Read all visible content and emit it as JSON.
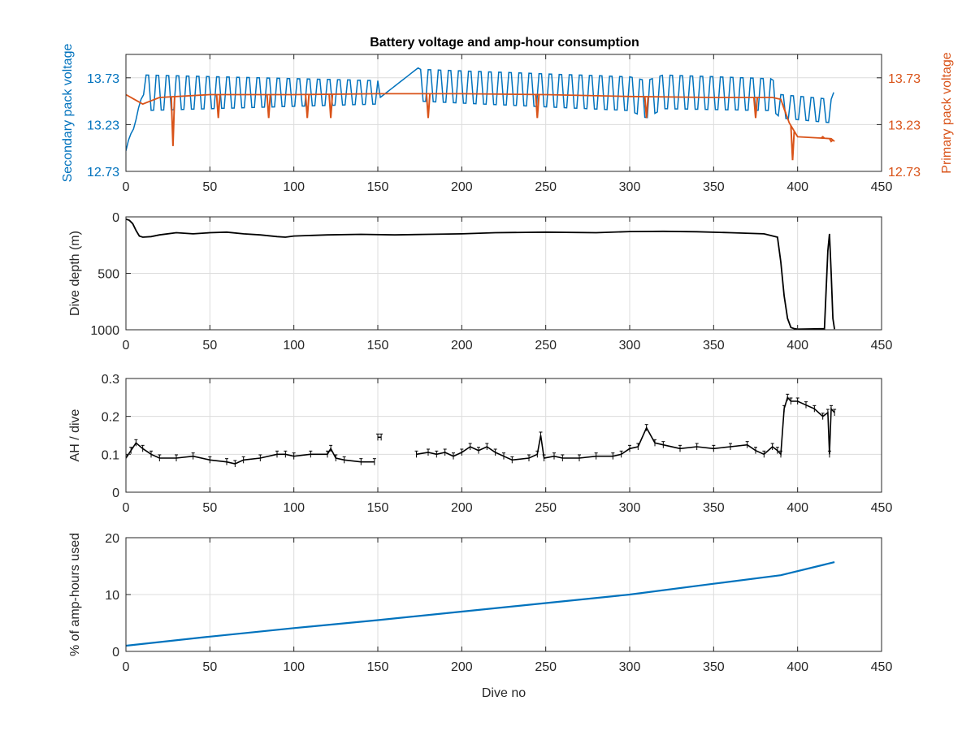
{
  "figure": {
    "title": "Battery voltage and amp-hour consumption",
    "colors": {
      "secondary": "#0072BD",
      "primary": "#D95319",
      "black": "#000000",
      "grid": "#dcdcdc"
    }
  },
  "chart_data": [
    {
      "type": "line",
      "title": "Battery voltage and amp-hour consumption",
      "xlabel": "",
      "ylabel": "Secondary pack voltage",
      "ylabel_right": "Primary pack voltage",
      "xlim": [
        0,
        450
      ],
      "ylim": [
        12.73,
        13.98
      ],
      "ylim_right": [
        12.73,
        13.98
      ],
      "xticks": [
        0,
        50,
        100,
        150,
        200,
        250,
        300,
        350,
        400,
        450
      ],
      "yticks": [
        12.73,
        13.23,
        13.73
      ],
      "ytick_labels": [
        "12.73",
        "13.23",
        "13.73"
      ],
      "yticks_right": [
        12.73,
        13.23,
        13.73
      ],
      "ytick_labels_right": [
        "12.73",
        "13.23",
        "13.73"
      ],
      "grid": true,
      "note_series_style": "secondary oscillates between low and high level",
      "series": [
        {
          "axis": "left",
          "color": "#0072BD",
          "x": [
            0,
            2,
            5,
            8,
            10,
            150,
            175,
            300,
            310,
            320,
            385,
            390,
            420,
            422
          ],
          "y": [
            12.95,
            13.1,
            13.2,
            13.45,
            13.55,
            13.5,
            13.85,
            13.55,
            13.3,
            13.6,
            13.55,
            13.3,
            13.35,
            13.5
          ],
          "osc_low": [
            13.35,
            13.35,
            13.35,
            13.4,
            13.38,
            13.45,
            13.48,
            13.38,
            13.3,
            13.4,
            13.38,
            13.3,
            13.25,
            13.3
          ],
          "osc_high": [
            13.1,
            13.3,
            13.55,
            13.76,
            13.76,
            13.7,
            13.82,
            13.74,
            13.7,
            13.76,
            13.72,
            13.55,
            13.5,
            13.6
          ]
        },
        {
          "axis": "right",
          "color": "#D95319",
          "x": [
            0,
            5,
            10,
            20,
            50,
            100,
            150,
            200,
            250,
            300,
            350,
            385,
            390,
            395,
            400,
            420,
            422
          ],
          "y": [
            13.55,
            13.5,
            13.45,
            13.52,
            13.55,
            13.55,
            13.56,
            13.56,
            13.55,
            13.53,
            13.52,
            13.52,
            13.5,
            13.25,
            13.1,
            13.08,
            13.05
          ],
          "dips": [
            [
              28,
              13.0
            ],
            [
              55,
              13.3
            ],
            [
              85,
              13.3
            ],
            [
              108,
              13.3
            ],
            [
              122,
              13.3
            ],
            [
              180,
              13.3
            ],
            [
              245,
              13.3
            ],
            [
              310,
              13.3
            ],
            [
              375,
              13.3
            ],
            [
              392,
              13.4
            ],
            [
              397,
              12.85
            ],
            [
              415,
              13.1
            ],
            [
              420,
              13.05
            ]
          ]
        }
      ]
    },
    {
      "type": "line",
      "xlabel": "",
      "ylabel": "Dive depth (m)",
      "xlim": [
        0,
        450
      ],
      "ylim": [
        0,
        1000
      ],
      "y_reversed": true,
      "xticks": [
        0,
        50,
        100,
        150,
        200,
        250,
        300,
        350,
        400,
        450
      ],
      "yticks": [
        0,
        500,
        1000
      ],
      "grid": true,
      "series": [
        {
          "color": "#000000",
          "x": [
            0,
            2,
            4,
            6,
            8,
            10,
            15,
            20,
            30,
            40,
            50,
            60,
            70,
            80,
            90,
            95,
            100,
            120,
            140,
            160,
            180,
            200,
            220,
            250,
            280,
            300,
            320,
            340,
            360,
            380,
            388,
            390,
            392,
            394,
            396,
            398,
            400,
            410,
            416,
            418,
            419,
            420,
            421,
            422
          ],
          "y": [
            20,
            30,
            60,
            120,
            170,
            180,
            175,
            160,
            140,
            150,
            140,
            135,
            150,
            160,
            175,
            180,
            170,
            160,
            155,
            160,
            155,
            150,
            140,
            135,
            140,
            130,
            128,
            132,
            140,
            150,
            180,
            400,
            700,
            900,
            980,
            990,
            995,
            992,
            990,
            300,
            150,
            500,
            900,
            995
          ]
        }
      ]
    },
    {
      "type": "line",
      "xlabel": "",
      "ylabel": "AH / dive",
      "xlim": [
        0,
        450
      ],
      "ylim": [
        0,
        0.3
      ],
      "xticks": [
        0,
        50,
        100,
        150,
        200,
        250,
        300,
        350,
        400,
        450
      ],
      "yticks": [
        0,
        0.1,
        0.2,
        0.3
      ],
      "ytick_labels": [
        "0",
        "0.1",
        "0.2",
        "0.3"
      ],
      "grid": true,
      "series": [
        {
          "color": "#000000",
          "segments": [
            {
              "x": [
                0,
                3,
                6,
                10,
                15,
                20,
                30,
                40,
                50,
                60,
                65,
                70,
                80,
                90,
                95,
                100,
                110,
                120,
                122,
                125,
                130,
                140,
                148
              ],
              "y": [
                0.09,
                0.11,
                0.13,
                0.115,
                0.1,
                0.09,
                0.09,
                0.095,
                0.085,
                0.08,
                0.075,
                0.085,
                0.09,
                0.1,
                0.1,
                0.095,
                0.1,
                0.1,
                0.115,
                0.09,
                0.085,
                0.08,
                0.08
              ]
            },
            {
              "x": [
                150,
                152
              ],
              "y": [
                0.145,
                0.145
              ]
            },
            {
              "x": [
                173,
                180,
                185,
                190,
                195,
                200,
                205,
                210,
                215,
                220,
                225,
                230,
                240,
                245,
                247,
                249,
                255,
                260,
                270,
                280,
                290,
                295,
                300,
                305,
                310,
                315,
                320,
                330,
                340,
                350,
                360,
                370,
                375,
                380,
                385,
                388,
                390,
                392,
                394,
                396,
                400,
                405,
                410,
                415,
                418,
                419,
                420,
                422
              ],
              "y": [
                0.1,
                0.105,
                0.1,
                0.105,
                0.095,
                0.105,
                0.12,
                0.11,
                0.12,
                0.105,
                0.095,
                0.085,
                0.09,
                0.1,
                0.15,
                0.09,
                0.095,
                0.09,
                0.09,
                0.095,
                0.095,
                0.1,
                0.115,
                0.12,
                0.17,
                0.13,
                0.125,
                0.115,
                0.12,
                0.115,
                0.12,
                0.125,
                0.11,
                0.1,
                0.12,
                0.11,
                0.1,
                0.22,
                0.25,
                0.24,
                0.24,
                0.23,
                0.22,
                0.2,
                0.21,
                0.1,
                0.22,
                0.21
              ]
            }
          ]
        }
      ]
    },
    {
      "type": "line",
      "xlabel": "Dive no",
      "ylabel": "% of amp-hours used",
      "xlim": [
        0,
        450
      ],
      "ylim": [
        0,
        20
      ],
      "xticks": [
        0,
        50,
        100,
        150,
        200,
        250,
        300,
        350,
        400,
        450
      ],
      "yticks": [
        0,
        10,
        20
      ],
      "grid": true,
      "series": [
        {
          "color": "#0072BD",
          "x": [
            0,
            50,
            100,
            150,
            200,
            250,
            300,
            350,
            390,
            422
          ],
          "y": [
            1.0,
            2.6,
            4.1,
            5.5,
            7.0,
            8.5,
            10.0,
            11.9,
            13.4,
            15.7
          ]
        }
      ]
    }
  ]
}
